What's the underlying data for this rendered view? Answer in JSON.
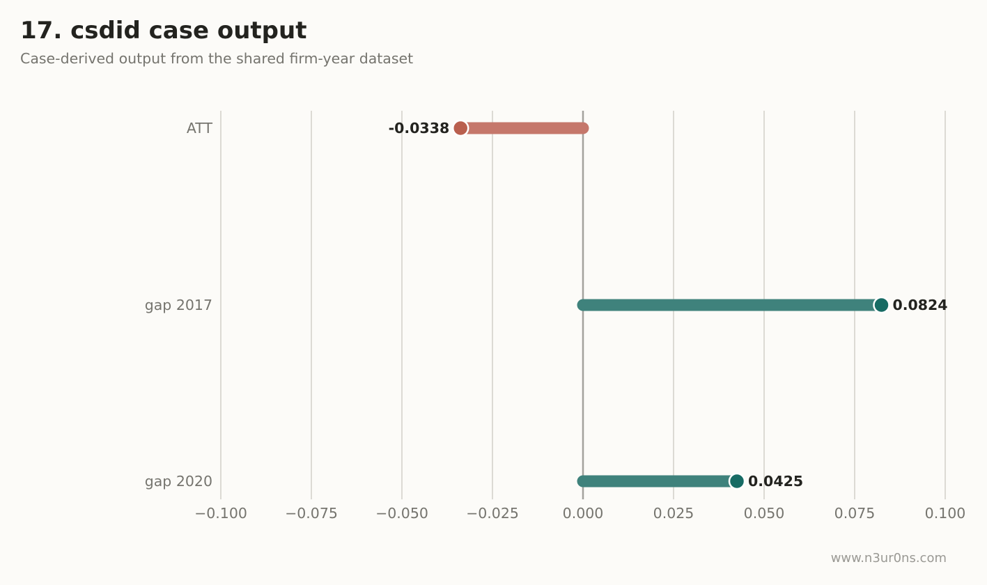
{
  "header": {
    "title": "17. csdid case output",
    "subtitle": "Case-derived output from the shared firm-year dataset"
  },
  "footer": {
    "watermark": "www.n3ur0ns.com"
  },
  "chart_data": {
    "type": "bar",
    "orientation": "horizontal",
    "style": "lollipop",
    "categories": [
      "ATT",
      "gap 2017",
      "gap 2020"
    ],
    "values": [
      -0.0338,
      0.0824,
      0.0425
    ],
    "value_labels": [
      "-0.0338",
      "0.0824",
      "0.0425"
    ],
    "xlim": [
      -0.1,
      0.1
    ],
    "xticks": [
      -0.1,
      -0.075,
      -0.05,
      -0.025,
      0.0,
      0.025,
      0.05,
      0.075,
      0.1
    ],
    "xtick_labels": [
      "−0.100",
      "−0.075",
      "−0.050",
      "−0.025",
      "0.000",
      "0.025",
      "0.050",
      "0.075",
      "0.100"
    ],
    "xlabel": "",
    "ylabel": "",
    "grid": "vertical",
    "reference_line": 0,
    "colors": {
      "negative_stem": "#c5776b",
      "negative_dot": "#b95f4e",
      "positive_stem": "#3f827c",
      "positive_dot": "#176b64",
      "grid": "#dcdad4",
      "zero_line": "#a3a29d"
    }
  }
}
